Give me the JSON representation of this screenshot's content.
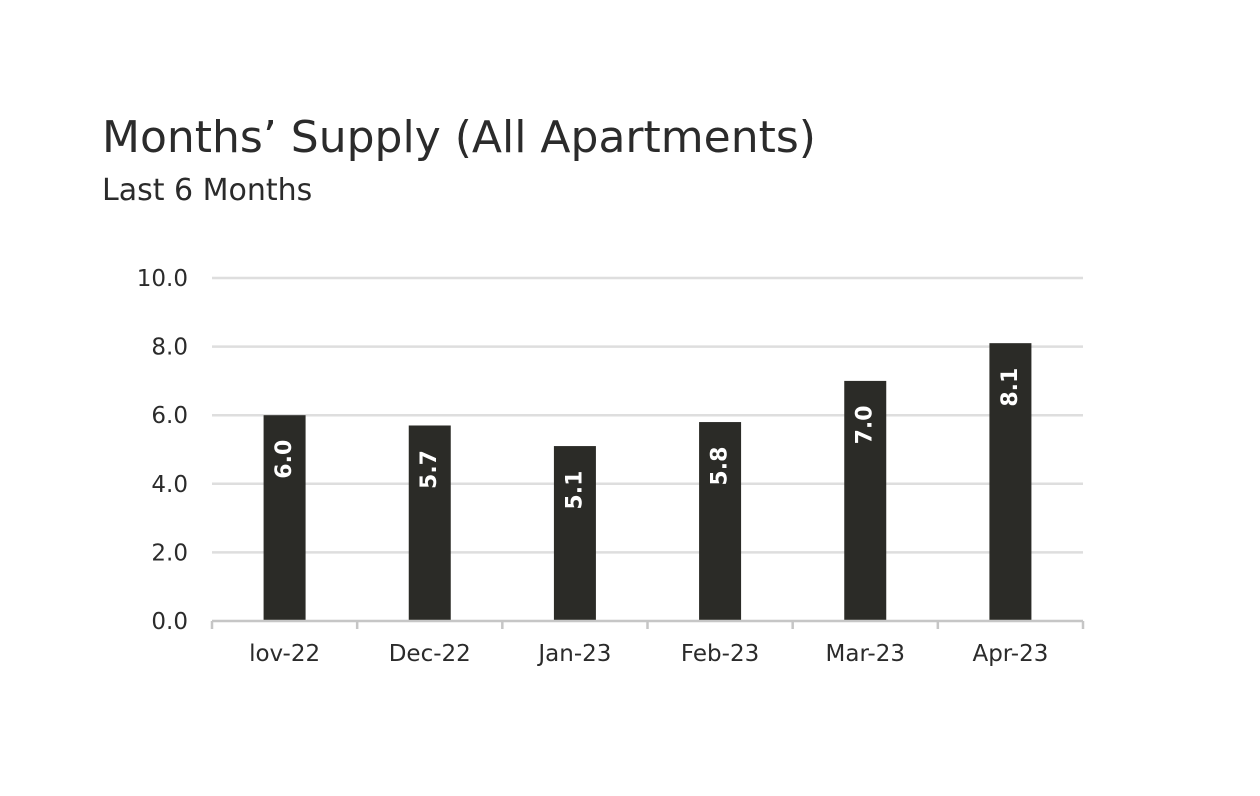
{
  "chart_data": {
    "type": "bar",
    "title": "Months’ Supply (All Apartments)",
    "subtitle": "Last 6 Months",
    "categories": [
      "lov-22",
      "Dec-22",
      "Jan-23",
      "Feb-23",
      "Mar-23",
      "Apr-23"
    ],
    "values": [
      6.0,
      5.7,
      5.1,
      5.8,
      7.0,
      8.1
    ],
    "data_labels": [
      "6.0",
      "5.7",
      "5.1",
      "5.8",
      "7.0",
      "8.1"
    ],
    "ylim": [
      0,
      10
    ],
    "yticks": [
      "0.0",
      "2.0",
      "4.0",
      "6.0",
      "8.0",
      "10.0"
    ],
    "ytick_values": [
      0,
      2,
      4,
      6,
      8,
      10
    ],
    "grid": true,
    "data_label_orientation": "vertical",
    "colors": {
      "bar": "#2b2b27",
      "grid": "#dedede",
      "axis": "#c6c6c6",
      "text": "#2b2b2b",
      "bar_label": "#ffffff"
    }
  }
}
